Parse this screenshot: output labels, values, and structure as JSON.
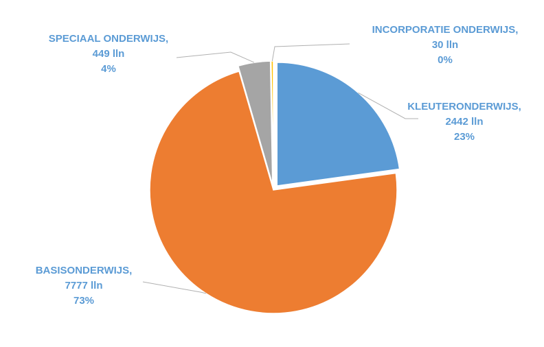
{
  "chart_data": {
    "type": "pie",
    "title": "",
    "unit": "lln",
    "slices": [
      {
        "category": "KLEUTERONDERWIJS",
        "value": 2442,
        "percent": "23%",
        "color": "#5b9bd5",
        "exploded": true
      },
      {
        "category": "BASISONDERWIJS",
        "value": 7777,
        "percent": "73%",
        "color": "#ed7d31",
        "exploded": false
      },
      {
        "category": "SPECIAAL ONDERWIJS",
        "value": 449,
        "percent": "4%",
        "color": "#a5a5a5",
        "exploded": true
      },
      {
        "category": "INCORPORATIE ONDERWIJS",
        "value": 30,
        "percent": "0%",
        "color": "#ffc000",
        "exploded": true
      }
    ],
    "labels": [
      {
        "line1": "KLEUTERONDERWIJS,",
        "line2": "2442 lln",
        "line3": "23%"
      },
      {
        "line1": "BASISONDERWIJS,",
        "line2": "7777 lln",
        "line3": "73%"
      },
      {
        "line1": "SPECIAAL ONDERWIJS,",
        "line2": "449 lln",
        "line3": "4%"
      },
      {
        "line1": "INCORPORATIE ONDERWIJS,",
        "line2": "30 lln",
        "line3": "0%"
      }
    ],
    "legend": "none"
  }
}
